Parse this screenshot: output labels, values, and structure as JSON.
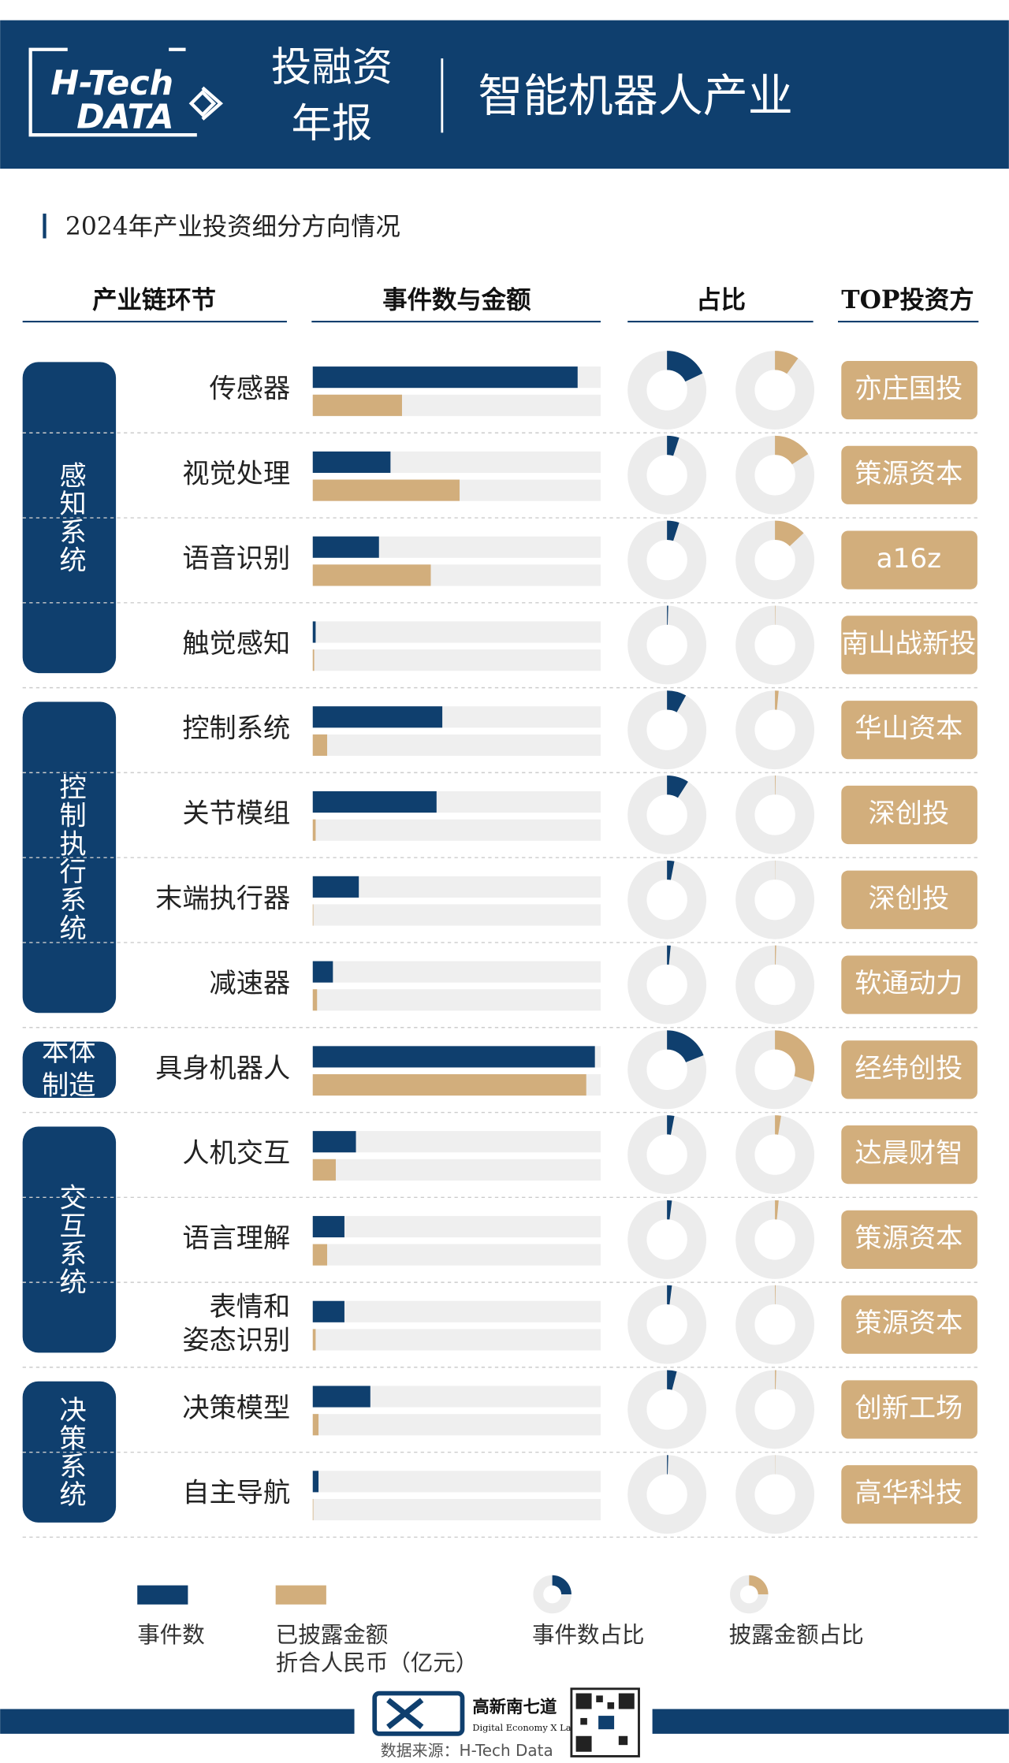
{
  "header": {
    "logo_line1": "H-Tech",
    "logo_line2": "DATA",
    "title_lines": [
      "投融资",
      "年报"
    ],
    "subject": "智能机器人产业"
  },
  "chart_data": {
    "type": "bar",
    "title": "2024年产业投资细分方向情况",
    "column_headers": [
      "产业链环节",
      "事件数与金额",
      "占比",
      "TOP投资方"
    ],
    "xlim": [
      0,
      100
    ],
    "events_color": "#0f3f6e",
    "amount_color": "#d2ae7c",
    "share_lim": [
      0,
      100
    ],
    "groups": [
      {
        "label": "感知系统",
        "rows": [
          {
            "name": "传感器",
            "events": 92,
            "amount": 31,
            "event_share": 18,
            "amount_share": 10,
            "top_investor": "亦庄国投"
          },
          {
            "name": "视觉处理",
            "events": 27,
            "amount": 51,
            "event_share": 5,
            "amount_share": 16,
            "top_investor": "策源资本"
          },
          {
            "name": "语音识别",
            "events": 23,
            "amount": 41,
            "event_share": 5,
            "amount_share": 13,
            "top_investor": "a16z"
          },
          {
            "name": "触觉感知",
            "events": 1,
            "amount": 0.5,
            "event_share": 0.5,
            "amount_share": 0.2,
            "top_investor": "南山战新投"
          }
        ]
      },
      {
        "label": "控制执行系统",
        "rows": [
          {
            "name": "控制系统",
            "events": 45,
            "amount": 5,
            "event_share": 8,
            "amount_share": 1.5,
            "top_investor": "华山资本"
          },
          {
            "name": "关节模组",
            "events": 43,
            "amount": 1,
            "event_share": 9,
            "amount_share": 0.3,
            "top_investor": "深创投"
          },
          {
            "name": "末端执行器",
            "events": 16,
            "amount": 0.2,
            "event_share": 3,
            "amount_share": 0.1,
            "top_investor": "深创投"
          },
          {
            "name": "减速器",
            "events": 7,
            "amount": 1.5,
            "event_share": 1.5,
            "amount_share": 0.5,
            "top_investor": "软通动力"
          }
        ]
      },
      {
        "label": "本体制造",
        "rows": [
          {
            "name": "具身机器人",
            "events": 98,
            "amount": 95,
            "event_share": 19,
            "amount_share": 30,
            "top_investor": "经纬创投"
          }
        ]
      },
      {
        "label": "交互系统",
        "rows": [
          {
            "name": "人机交互",
            "events": 15,
            "amount": 8,
            "event_share": 3,
            "amount_share": 2.5,
            "top_investor": "达晨财智"
          },
          {
            "name": "语言理解",
            "events": 11,
            "amount": 5,
            "event_share": 2,
            "amount_share": 1.5,
            "top_investor": "策源资本"
          },
          {
            "name": "表情和姿态识别",
            "events": 11,
            "amount": 1,
            "event_share": 2,
            "amount_share": 0.3,
            "top_investor": "策源资本"
          }
        ]
      },
      {
        "label": "决策系统",
        "rows": [
          {
            "name": "决策模型",
            "events": 20,
            "amount": 2,
            "event_share": 4,
            "amount_share": 0.5,
            "top_investor": "创新工场"
          },
          {
            "name": "自主导航",
            "events": 2,
            "amount": 0.2,
            "event_share": 0.5,
            "amount_share": 0.1,
            "top_investor": "高华科技"
          }
        ]
      }
    ],
    "legend": {
      "events": "事件数",
      "amount_lines": [
        "已披露金额",
        "折合人民币（亿元）"
      ],
      "event_share": "事件数占比",
      "amount_share": "披露金额占比"
    }
  },
  "footer": {
    "brand": "高新南七道",
    "brand_en": "Digital Economy X Lab.",
    "source": "数据来源：H-Tech Data"
  }
}
